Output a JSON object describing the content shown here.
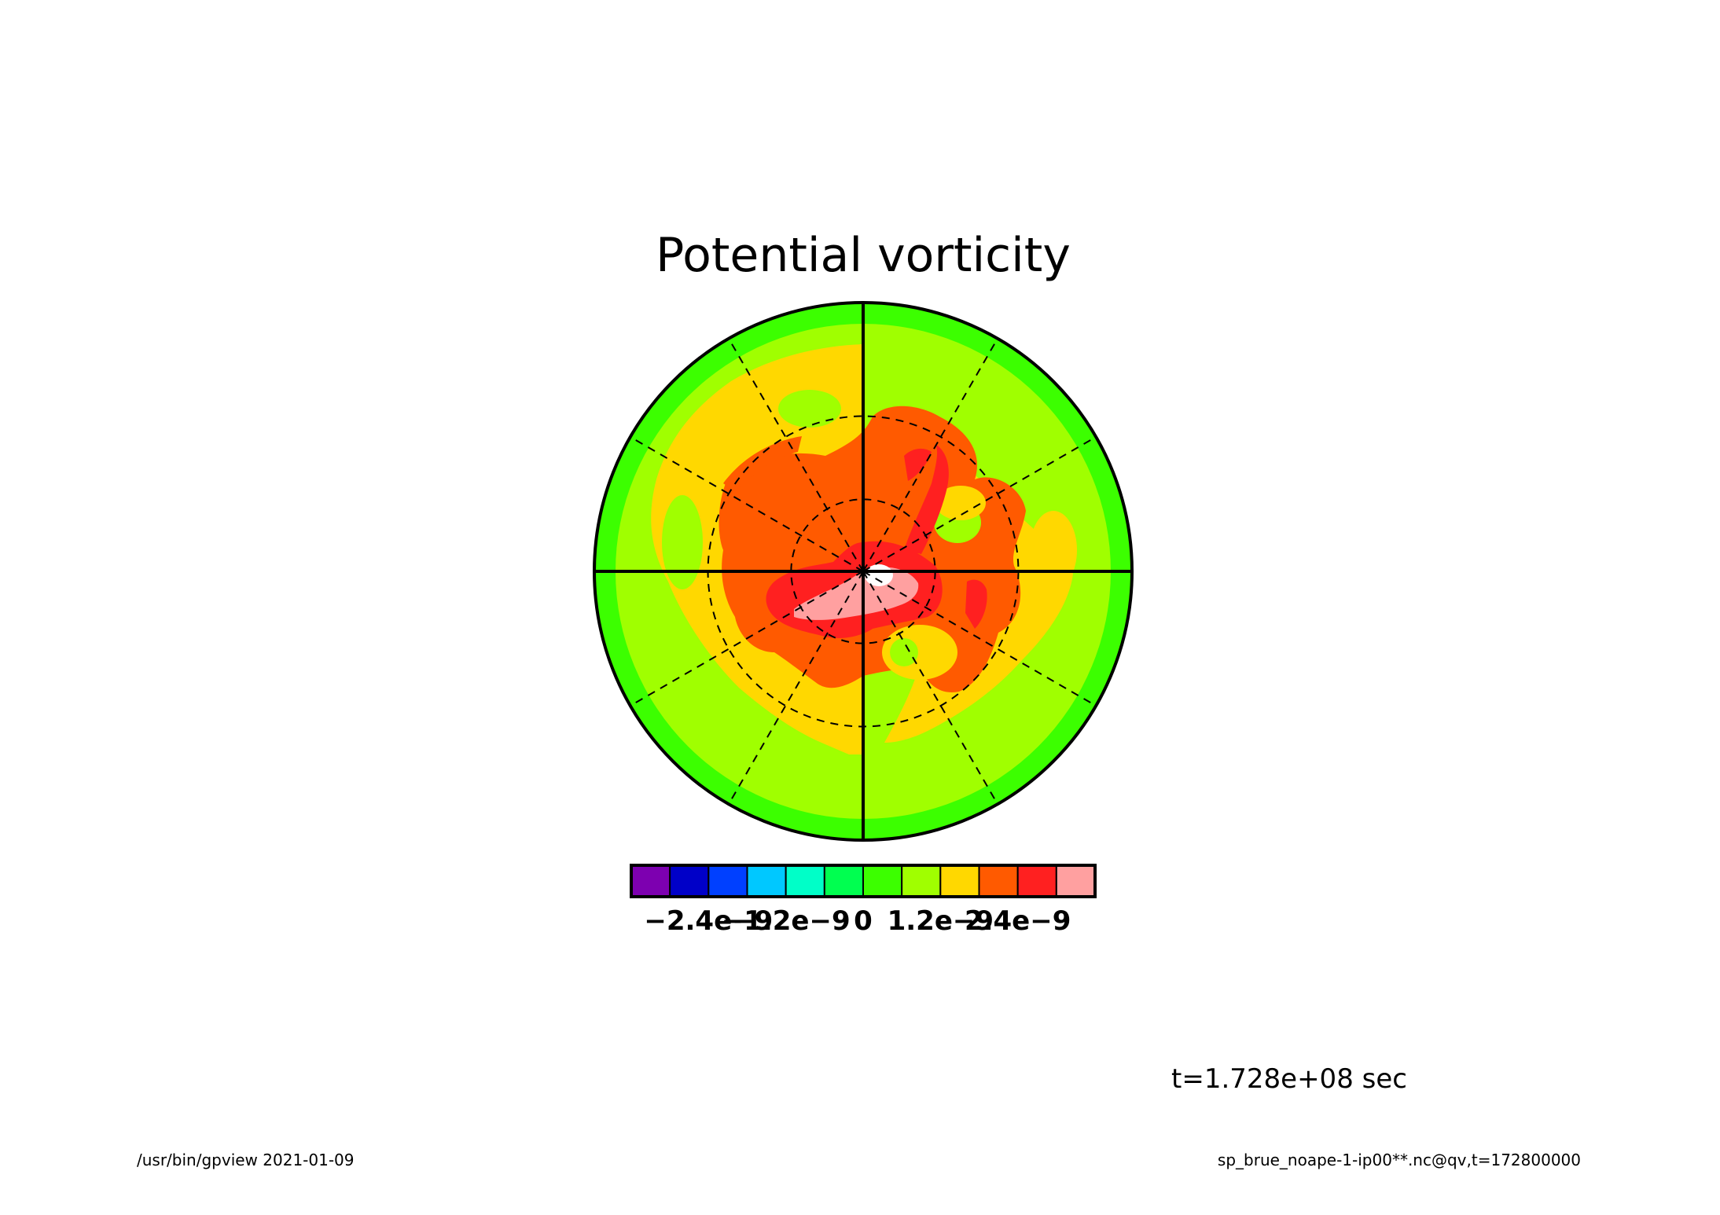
{
  "chart_data": {
    "type": "contour",
    "projection": "polar-stereographic",
    "title": "Potential vorticity",
    "time_label": "t=1.728e+08 sec",
    "colorbar": {
      "colors": [
        "#7d00b0",
        "#0000c8",
        "#0040ff",
        "#00c8ff",
        "#00ffc8",
        "#00ff50",
        "#3cff00",
        "#a0ff00",
        "#ffd800",
        "#ff5a00",
        "#ff2020",
        "#ffa0a0"
      ],
      "boundaries": [
        -3e-09,
        -2.4e-09,
        -1.8e-09,
        -1.2e-09,
        -6e-10,
        0,
        6e-10,
        1.2e-09,
        1.8e-09,
        2.4e-09,
        3e-09
      ],
      "tick_values": [
        -2.4e-09,
        -1.2e-09,
        0,
        1.2e-09,
        2.4e-09
      ],
      "tick_labels": [
        "−2.4e−9",
        "−1.2e−9",
        "0",
        "1.2e−9",
        "2.4e−9"
      ]
    },
    "grid": {
      "meridian_spacing_deg": 30,
      "latitude_circles_deg": [
        60,
        30
      ]
    }
  },
  "colors": {
    "outer_ring": "#3cff00",
    "yellow_green": "#a0ff00",
    "yellow": "#ffd800",
    "orange": "#ff5a00",
    "red": "#ff2020",
    "pink": "#ffa0a0",
    "center": "#ffffff"
  },
  "footer": {
    "left": "/usr/bin/gpview  2021-01-09",
    "right": "sp_brue_noape-1-ip00**.nc@qv,t=172800000"
  }
}
